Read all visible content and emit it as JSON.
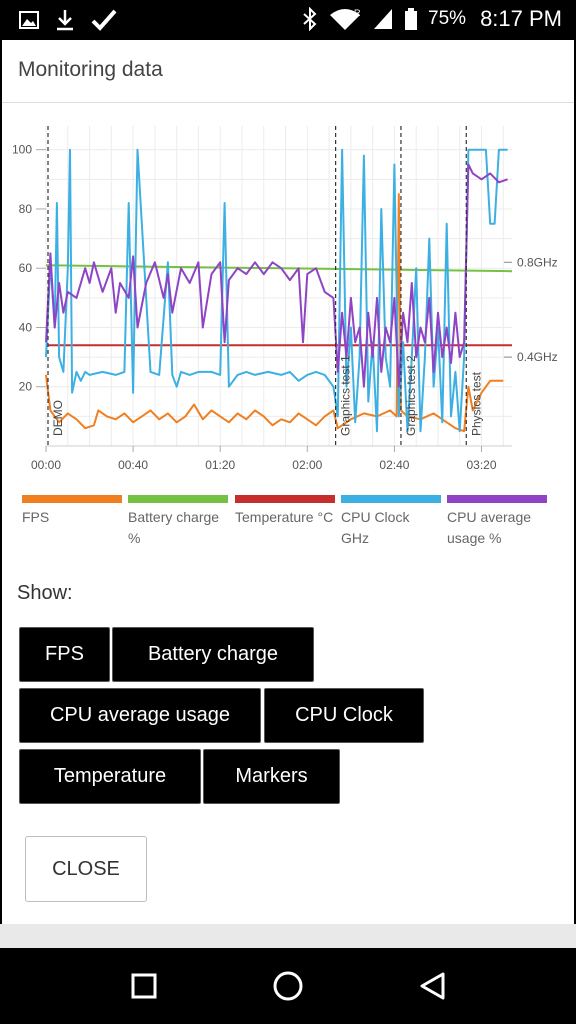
{
  "status_bar": {
    "battery_percent": "75%",
    "time": "8:17 PM"
  },
  "dialog": {
    "title": "Monitoring data",
    "show_label": "Show:",
    "close_label": "CLOSE"
  },
  "toggles": [
    {
      "label": "FPS"
    },
    {
      "label": "Battery charge"
    },
    {
      "label": "CPU average usage"
    },
    {
      "label": "CPU Clock"
    },
    {
      "label": "Temperature"
    },
    {
      "label": "Markers"
    }
  ],
  "legend": [
    {
      "label": "FPS",
      "color": "#f07f22"
    },
    {
      "label": "Battery charge %",
      "color": "#76c043"
    },
    {
      "label": "Temperature °C",
      "color": "#c62e2e"
    },
    {
      "label": "CPU Clock GHz",
      "color": "#3db0e3"
    },
    {
      "label": "CPU average usage %",
      "color": "#8e44c4"
    }
  ],
  "chart_data": {
    "type": "line",
    "x_unit": "mm:ss elapsed",
    "x_ticks": [
      "00:00",
      "00:40",
      "01:20",
      "02:00",
      "02:40",
      "03:20"
    ],
    "x_tick_seconds": [
      0,
      40,
      80,
      120,
      160,
      200
    ],
    "xlim_seconds": [
      0,
      214
    ],
    "ylim": [
      0,
      108
    ],
    "y_ticks": [
      20,
      40,
      60,
      80,
      100
    ],
    "right_ticks": [
      {
        "label": "0.8GHz",
        "value": 62
      },
      {
        "label": "0.4GHz",
        "value": 30
      }
    ],
    "markers": [
      {
        "label": "DEMO",
        "x": 0
      },
      {
        "label": "Graphics test 1",
        "x": 133
      },
      {
        "label": "Graphics test 2",
        "x": 163
      },
      {
        "label": "Physics test",
        "x": 193
      }
    ],
    "grid": true,
    "series": [
      {
        "name": "Battery charge %",
        "color": "#76c043",
        "x": [
          0,
          214
        ],
        "y": [
          61,
          59
        ]
      },
      {
        "name": "Temperature °C",
        "color": "#c62e2e",
        "x": [
          0,
          214
        ],
        "y": [
          34,
          34
        ]
      },
      {
        "name": "FPS",
        "color": "#f07f22",
        "x": [
          0,
          2,
          4,
          6,
          10,
          14,
          18,
          22,
          24,
          28,
          32,
          36,
          40,
          44,
          48,
          52,
          56,
          60,
          64,
          68,
          72,
          76,
          80,
          84,
          88,
          92,
          96,
          100,
          104,
          108,
          112,
          116,
          120,
          124,
          128,
          132,
          134,
          140,
          146,
          152,
          158,
          161,
          162,
          163,
          166,
          172,
          178,
          184,
          188,
          192,
          194,
          196,
          200,
          204,
          210
        ],
        "y": [
          24,
          12,
          10,
          8,
          11,
          9,
          6,
          7,
          12,
          10,
          9,
          11,
          8,
          10,
          12,
          9,
          11,
          8,
          10,
          14,
          9,
          12,
          10,
          8,
          11,
          9,
          12,
          10,
          7,
          9,
          8,
          11,
          9,
          7,
          10,
          12,
          6,
          9,
          11,
          10,
          12,
          10,
          85,
          12,
          10,
          9,
          11,
          8,
          6,
          5,
          20,
          12,
          18,
          22,
          22
        ]
      },
      {
        "name": "CPU Clock GHz",
        "color": "#3db0e3",
        "x": [
          0,
          2,
          4,
          5,
          6,
          8,
          10,
          11,
          12,
          14,
          16,
          18,
          20,
          26,
          32,
          36,
          38,
          40,
          42,
          48,
          52,
          56,
          58,
          60,
          62,
          66,
          70,
          76,
          80,
          82,
          84,
          88,
          92,
          96,
          102,
          108,
          112,
          116,
          120,
          124,
          128,
          132,
          134,
          136,
          138,
          140,
          142,
          144,
          146,
          148,
          150,
          152,
          154,
          156,
          158,
          160,
          162,
          164,
          166,
          168,
          170,
          172,
          174,
          176,
          178,
          180,
          182,
          184,
          186,
          188,
          190,
          192,
          194,
          196,
          198,
          202,
          204,
          206,
          208,
          210,
          212
        ],
        "y": [
          30,
          62,
          40,
          82,
          30,
          25,
          60,
          100,
          18,
          25,
          22,
          25,
          24,
          25,
          24,
          25,
          82,
          18,
          100,
          25,
          24,
          62,
          24,
          20,
          25,
          24,
          25,
          25,
          24,
          82,
          20,
          24,
          25,
          24,
          25,
          24,
          25,
          22,
          24,
          25,
          24,
          20,
          10,
          100,
          20,
          40,
          8,
          30,
          98,
          15,
          35,
          5,
          80,
          30,
          20,
          95,
          10,
          35,
          5,
          30,
          60,
          5,
          30,
          70,
          20,
          40,
          8,
          75,
          10,
          25,
          5,
          30,
          100,
          100,
          100,
          100,
          75,
          75,
          100,
          100,
          100
        ]
      },
      {
        "name": "CPU average usage %",
        "color": "#8e44c4",
        "x": [
          0,
          2,
          4,
          6,
          8,
          10,
          14,
          18,
          20,
          22,
          26,
          30,
          32,
          34,
          38,
          40,
          42,
          46,
          50,
          54,
          56,
          58,
          62,
          66,
          70,
          72,
          76,
          80,
          82,
          84,
          88,
          92,
          96,
          100,
          104,
          108,
          112,
          116,
          118,
          120,
          124,
          128,
          132,
          134,
          136,
          138,
          140,
          142,
          144,
          146,
          148,
          150,
          152,
          154,
          156,
          158,
          160,
          162,
          164,
          166,
          168,
          170,
          172,
          174,
          176,
          178,
          180,
          182,
          184,
          186,
          188,
          190,
          192,
          194,
          196,
          200,
          204,
          208,
          212
        ],
        "y": [
          35,
          65,
          40,
          55,
          45,
          52,
          50,
          60,
          55,
          62,
          52,
          60,
          45,
          55,
          50,
          64,
          40,
          55,
          62,
          50,
          58,
          45,
          60,
          55,
          62,
          40,
          58,
          62,
          35,
          56,
          60,
          58,
          62,
          58,
          62,
          60,
          56,
          60,
          35,
          58,
          60,
          52,
          50,
          25,
          45,
          30,
          50,
          35,
          40,
          20,
          45,
          30,
          50,
          25,
          40,
          35,
          50,
          20,
          45,
          35,
          55,
          30,
          40,
          35,
          50,
          25,
          45,
          30,
          40,
          28,
          45,
          30,
          35,
          95,
          92,
          90,
          92,
          89,
          90
        ]
      }
    ]
  }
}
